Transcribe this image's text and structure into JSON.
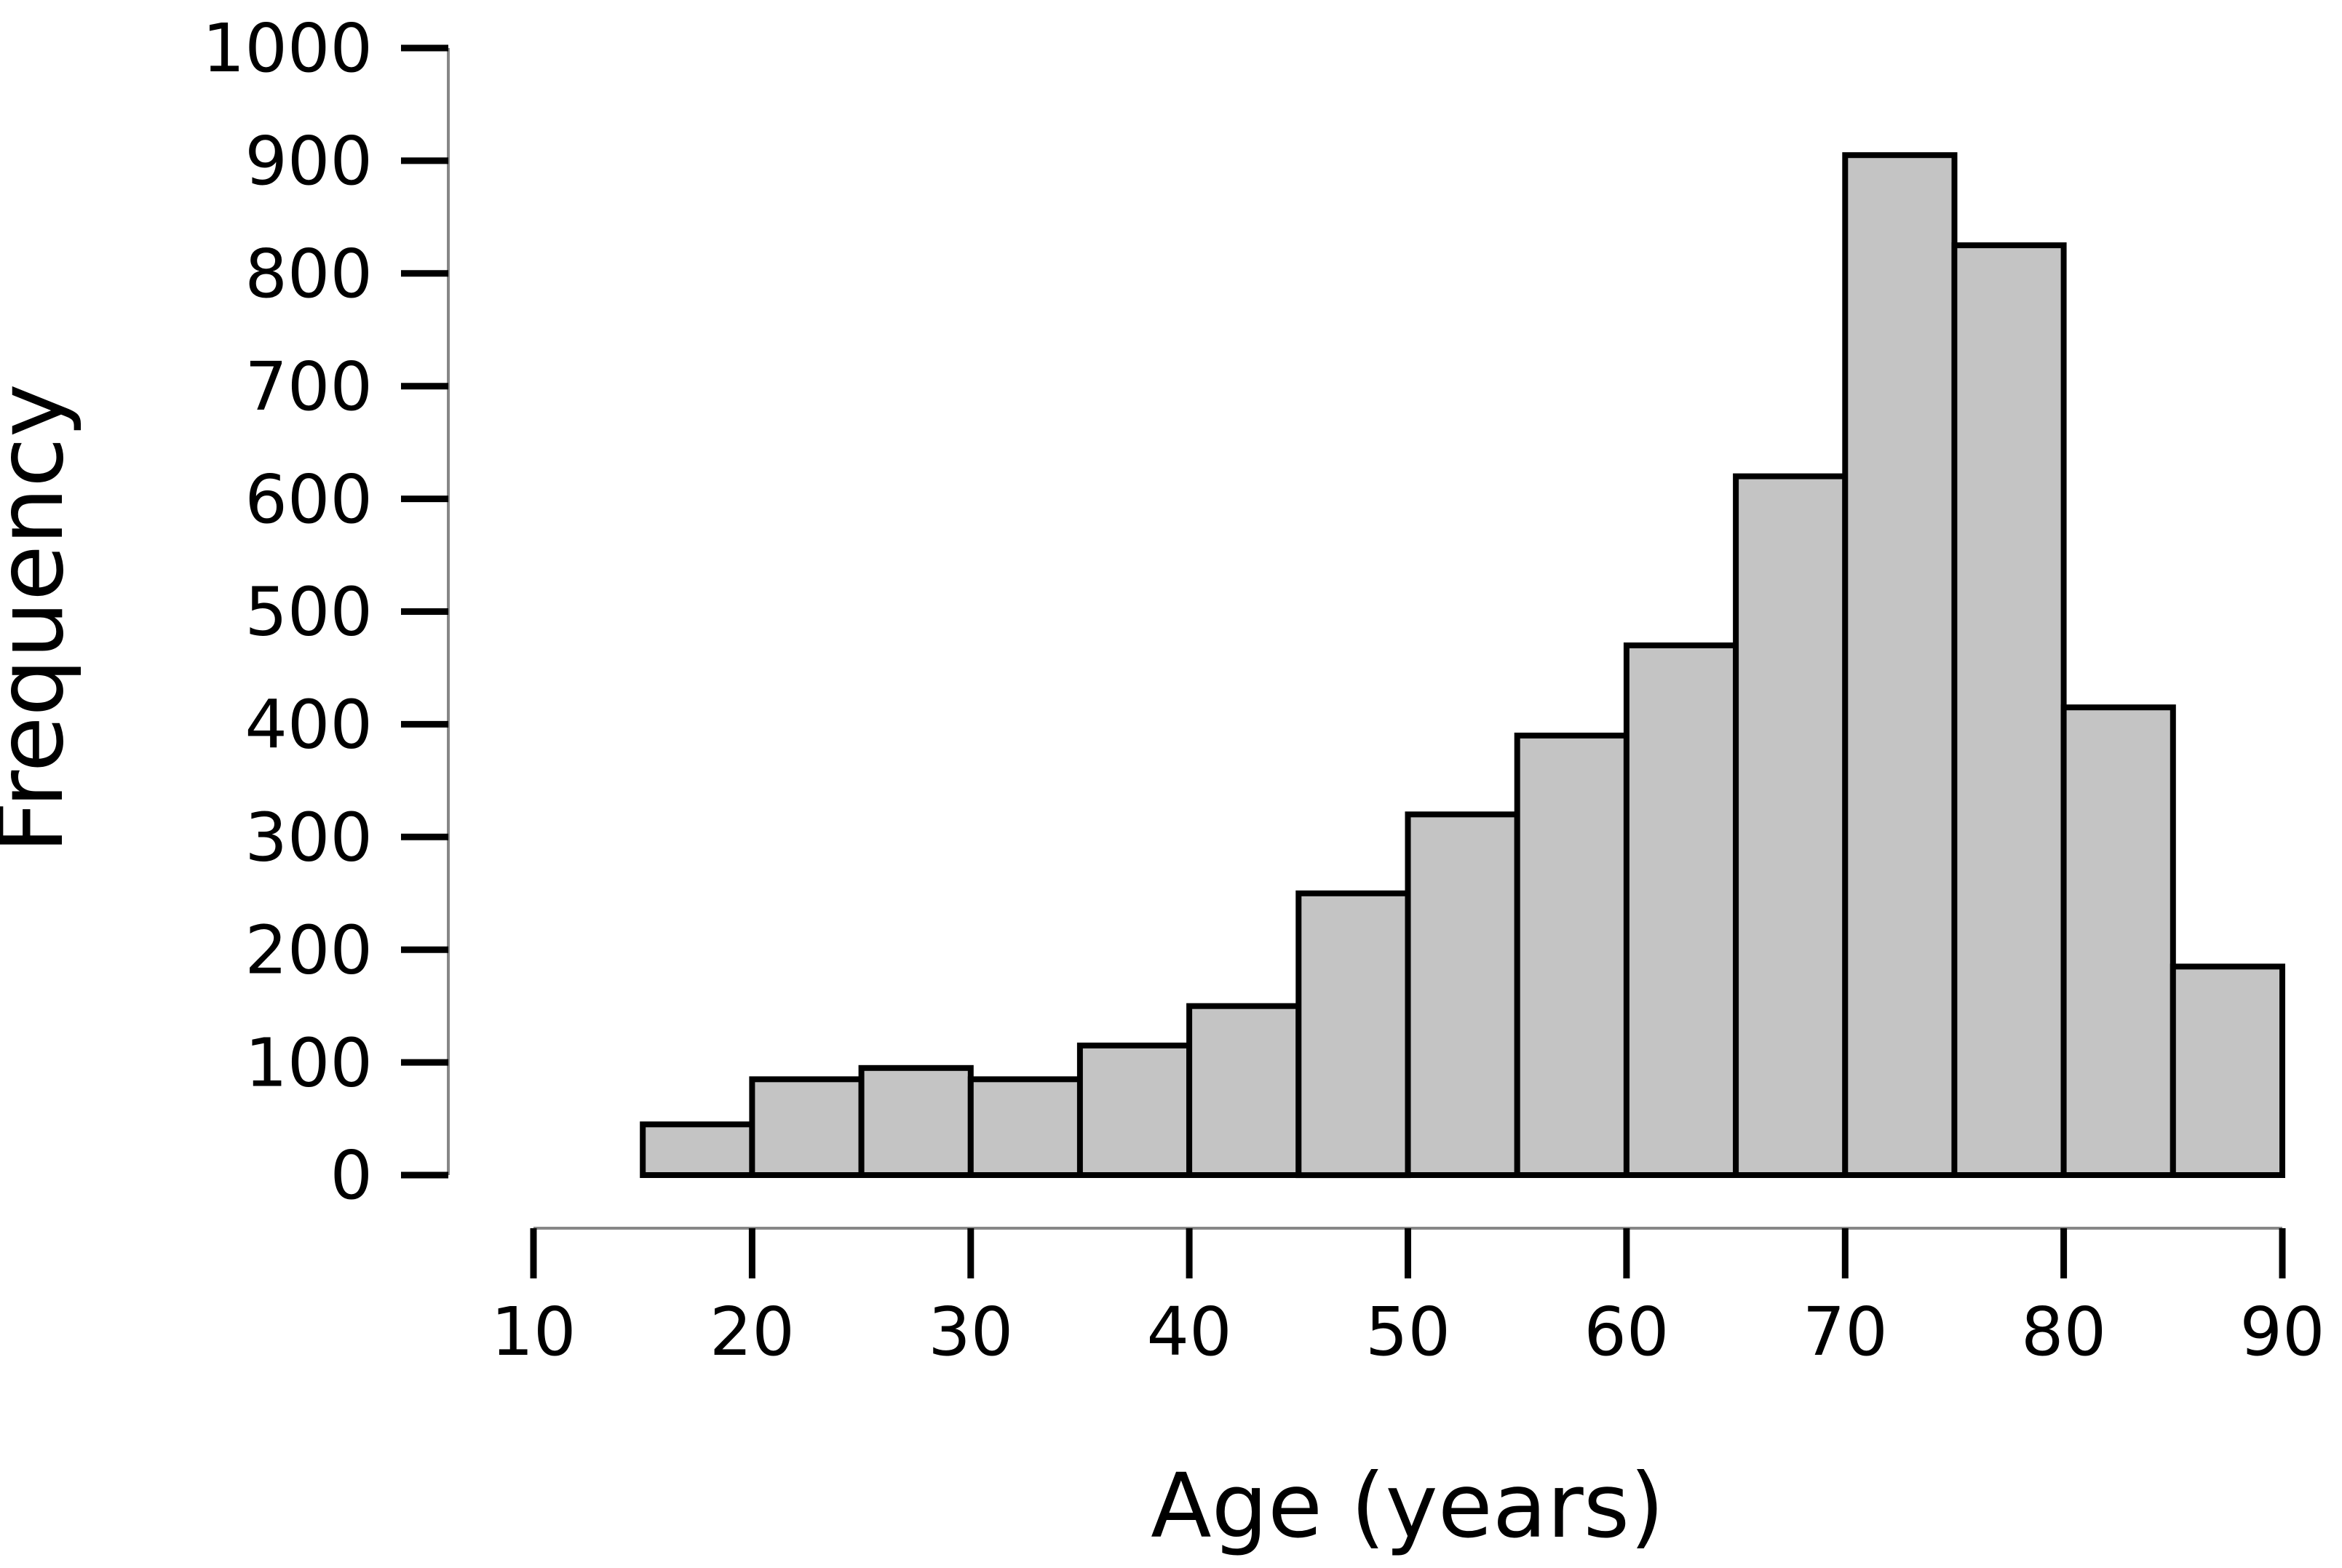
{
  "chart_data": {
    "type": "bar",
    "subtype": "histogram",
    "title": "",
    "xlabel": "Age (years)",
    "ylabel": "Frequency",
    "bin_edges": [
      15,
      20,
      25,
      30,
      35,
      40,
      45,
      50,
      55,
      60,
      65,
      70,
      75,
      80,
      85,
      90
    ],
    "values": [
      45,
      85,
      95,
      85,
      115,
      150,
      250,
      320,
      390,
      470,
      620,
      905,
      825,
      415,
      185
    ],
    "xticks": [
      10,
      20,
      30,
      40,
      50,
      60,
      70,
      80,
      90
    ],
    "yticks": [
      0,
      100,
      200,
      300,
      400,
      500,
      600,
      700,
      800,
      900,
      1000
    ],
    "xtick_labels": [
      "10",
      "20",
      "30",
      "40",
      "50",
      "60",
      "70",
      "80",
      "90"
    ],
    "ytick_labels": [
      "0",
      "100",
      "200",
      "300",
      "400",
      "500",
      "600",
      "700",
      "800",
      "900",
      "1000"
    ],
    "xlim": [
      10,
      90
    ],
    "ylim": [
      0,
      1000
    ],
    "grid": false,
    "legend": null,
    "bar_fill_color": "#c4c4c4",
    "bar_stroke_color": "#000000",
    "axis_line_color": "#878787",
    "tick_color": "#000000",
    "text_color": "#000000",
    "background_color": "#ffffff"
  }
}
